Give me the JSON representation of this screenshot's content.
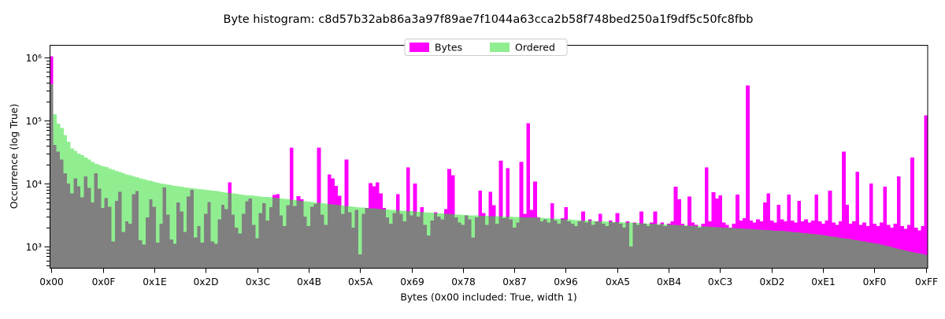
{
  "title": "Byte histogram: c8d57b32ab86a3a97f89ae7f1044a63cca2b58f748bed250a1f9df5c50fc8fbb",
  "legend": {
    "items": [
      {
        "label": "Bytes",
        "color": "#ff00ff"
      },
      {
        "label": "Ordered",
        "color": "#90ee90"
      }
    ]
  },
  "chart_data": {
    "type": "bar",
    "title": "Byte histogram: c8d57b32ab86a3a97f89ae7f1044a63cca2b58f748bed250a1f9df5c50fc8fbb",
    "xlabel": "Bytes (0x00 included: True, width 1)",
    "ylabel": "Occurrence (log True)",
    "yscale": "log",
    "ylim_exp": [
      2.6625,
      6.2
    ],
    "n_bins": 256,
    "grid": false,
    "legend_position": "upper center",
    "colors": {
      "bytes": "#ff00ff",
      "ordered": "#90ee90",
      "overlap": "#808080"
    },
    "x_ticks": [
      {
        "index": 0,
        "label": "0x00"
      },
      {
        "index": 15,
        "label": "0x0F"
      },
      {
        "index": 30,
        "label": "0x1E"
      },
      {
        "index": 45,
        "label": "0x2D"
      },
      {
        "index": 60,
        "label": "0x3C"
      },
      {
        "index": 75,
        "label": "0x4B"
      },
      {
        "index": 90,
        "label": "0x5A"
      },
      {
        "index": 105,
        "label": "0x69"
      },
      {
        "index": 120,
        "label": "0x78"
      },
      {
        "index": 135,
        "label": "0x87"
      },
      {
        "index": 150,
        "label": "0x96"
      },
      {
        "index": 165,
        "label": "0xA5"
      },
      {
        "index": 180,
        "label": "0xB4"
      },
      {
        "index": 195,
        "label": "0xC3"
      },
      {
        "index": 210,
        "label": "0xD2"
      },
      {
        "index": 225,
        "label": "0xE1"
      },
      {
        "index": 240,
        "label": "0xF0"
      },
      {
        "index": 255,
        "label": "0xFF"
      }
    ],
    "y_ticks": [
      {
        "exp": 3,
        "label": "10³"
      },
      {
        "exp": 4,
        "label": "10⁴"
      },
      {
        "exp": 5,
        "label": "10⁵"
      },
      {
        "exp": 6,
        "label": "10⁶"
      }
    ],
    "y_minor_multipliers": [
      2,
      3,
      4,
      5,
      6,
      7,
      8,
      9
    ],
    "series": [
      {
        "name": "Bytes",
        "values": [
          1050000,
          41000,
          32000,
          24000,
          14500,
          10000,
          7000,
          12000,
          9000,
          6000,
          13000,
          8500,
          5000,
          14500,
          8300,
          4100,
          5900,
          4300,
          1200,
          5300,
          7400,
          1700,
          2500,
          2300,
          6800,
          7600,
          1250,
          1080,
          2900,
          5600,
          4300,
          1150,
          2300,
          8700,
          3200,
          1300,
          1100,
          5000,
          3600,
          1700,
          6200,
          8000,
          1400,
          2100,
          1150,
          3300,
          5100,
          1200,
          1100,
          2700,
          4600,
          3900,
          10500,
          3200,
          2000,
          1600,
          3300,
          5200,
          5800,
          2200,
          1350,
          3400,
          4900,
          2600,
          4200,
          6600,
          6800,
          3100,
          2100,
          4500,
          37000,
          4400,
          6300,
          5600,
          3000,
          2100,
          4300,
          4700,
          37000,
          3200,
          2200,
          14000,
          12000,
          9200,
          6400,
          3300,
          24000,
          3500,
          2000,
          3800,
          750,
          3300,
          4100,
          10200,
          9000,
          10500,
          7000,
          4100,
          2900,
          2300,
          3400,
          6800,
          3300,
          2500,
          18000,
          3100,
          10000,
          3000,
          4200,
          2200,
          1500,
          2600,
          3500,
          3000,
          2700,
          3900,
          17000,
          13500,
          2900,
          2400,
          2200,
          3100,
          2700,
          1400,
          2900,
          7700,
          3400,
          2200,
          7400,
          4500,
          2300,
          23000,
          2800,
          17500,
          2700,
          2000,
          2400,
          22000,
          3300,
          90000,
          3800,
          10700,
          2900,
          2500,
          2700,
          2400,
          4900,
          2600,
          2300,
          2800,
          4200,
          2500,
          2300,
          2100,
          2500,
          3600,
          2400,
          2700,
          2200,
          2500,
          3300,
          2300,
          2100,
          2600,
          2400,
          3400,
          2300,
          2000,
          2500,
          1000,
          2400,
          2200,
          3600,
          2300,
          2100,
          2400,
          3600,
          2200,
          2400,
          2100,
          2300,
          2500,
          8900,
          5600,
          2300,
          2100,
          6200,
          2400,
          2200,
          2000,
          2300,
          18000,
          2500,
          7300,
          5800,
          6500,
          2400,
          2200,
          2000,
          2300,
          6700,
          2600,
          2800,
          360000,
          2600,
          2400,
          2700,
          2500,
          5000,
          7000,
          2600,
          2400,
          4600,
          2700,
          2500,
          6700,
          2600,
          2400,
          5300,
          2500,
          2700,
          2400,
          2600,
          6700,
          2500,
          2300,
          2600,
          7700,
          2400,
          2200,
          2500,
          32000,
          4600,
          2300,
          2500,
          15500,
          2200,
          2400,
          2100,
          10000,
          2300,
          2100,
          2400,
          8900,
          2200,
          2000,
          2300,
          13000,
          2100,
          1900,
          2200,
          26000,
          2000,
          1800,
          2100,
          120000
        ]
      },
      {
        "name": "Ordered",
        "values": [
          380000,
          126000,
          89000,
          76000,
          59000,
          46000,
          36000,
          33000,
          30000,
          28000,
          26000,
          24000,
          22000,
          20400,
          19600,
          18900,
          18200,
          17400,
          16600,
          15800,
          15100,
          14600,
          14000,
          13500,
          13000,
          12500,
          12000,
          11700,
          11300,
          11000,
          10600,
          10300,
          10000,
          9800,
          9600,
          9400,
          9200,
          9000,
          8900,
          8700,
          8500,
          8400,
          8260,
          8150,
          8040,
          7900,
          7800,
          7700,
          7600,
          7450,
          7330,
          7200,
          7080,
          6960,
          6840,
          6720,
          6600,
          6530,
          6460,
          6380,
          6310,
          6240,
          6170,
          6100,
          6030,
          5940,
          5860,
          5780,
          5690,
          5610,
          5540,
          5460,
          5380,
          5300,
          5220,
          5150,
          5080,
          5010,
          4940,
          4870,
          4810,
          4730,
          4670,
          4600,
          4540,
          4480,
          4420,
          4350,
          4290,
          4230,
          4170,
          4130,
          4090,
          4060,
          4020,
          3980,
          3940,
          3910,
          3870,
          3840,
          3800,
          3770,
          3730,
          3700,
          3660,
          3630,
          3600,
          3560,
          3530,
          3500,
          3470,
          3440,
          3400,
          3370,
          3340,
          3310,
          3280,
          3250,
          3220,
          3190,
          3160,
          3150,
          3130,
          3120,
          3100,
          3090,
          3080,
          3070,
          3050,
          3040,
          3030,
          3010,
          3000,
          2980,
          2970,
          2960,
          2940,
          2930,
          2920,
          2910,
          2890,
          2880,
          2860,
          2840,
          2820,
          2800,
          2780,
          2760,
          2740,
          2720,
          2700,
          2680,
          2660,
          2640,
          2620,
          2600,
          2590,
          2570,
          2550,
          2530,
          2510,
          2500,
          2480,
          2470,
          2450,
          2440,
          2430,
          2410,
          2400,
          2390,
          2370,
          2360,
          2340,
          2330,
          2320,
          2300,
          2290,
          2280,
          2260,
          2250,
          2240,
          2220,
          2210,
          2190,
          2180,
          2160,
          2150,
          2130,
          2120,
          2100,
          2090,
          2070,
          2060,
          2050,
          2030,
          2020,
          2000,
          1990,
          1980,
          1960,
          1950,
          1940,
          1920,
          1910,
          1890,
          1880,
          1860,
          1850,
          1830,
          1820,
          1810,
          1790,
          1780,
          1770,
          1750,
          1740,
          1710,
          1690,
          1670,
          1640,
          1620,
          1600,
          1580,
          1560,
          1530,
          1510,
          1490,
          1460,
          1430,
          1410,
          1380,
          1360,
          1330,
          1310,
          1280,
          1260,
          1230,
          1200,
          1170,
          1150,
          1120,
          1100,
          1070,
          1050,
          1010,
          980,
          950,
          920,
          890,
          870,
          840,
          820,
          790,
          780,
          760,
          740
        ]
      }
    ]
  }
}
